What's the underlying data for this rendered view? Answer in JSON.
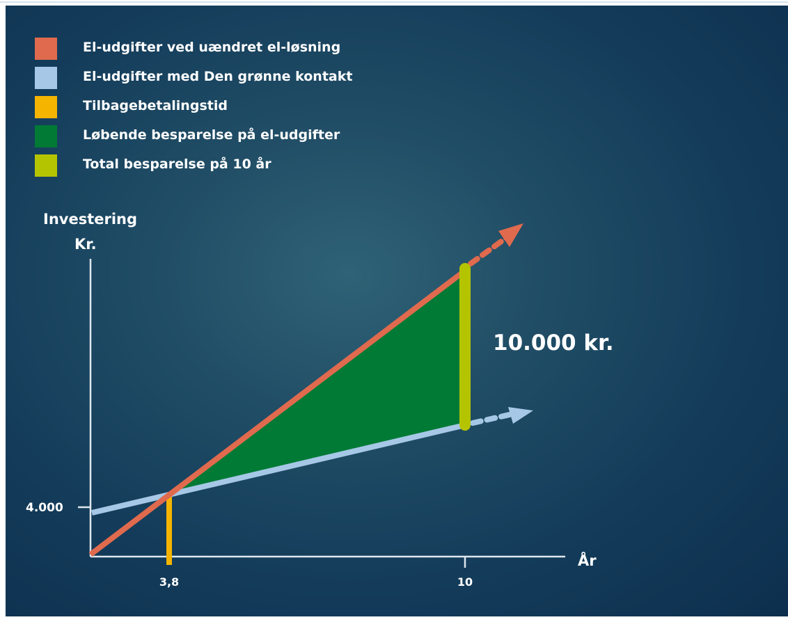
{
  "legend": [
    {
      "label": "El-udgifter ved uændret el-løsning",
      "color": "#e06a4e"
    },
    {
      "label": "El-udgifter med Den grønne kontakt",
      "color": "#a6c8e6"
    },
    {
      "label": "Tilbagebetalingstid",
      "color": "#f5b400"
    },
    {
      "label": "Løbende besparelse på el-udgifter",
      "color": "#007a35"
    },
    {
      "label": "Total besparelse på 10 år",
      "color": "#b5c400"
    }
  ],
  "axes": {
    "y_title": "Investering",
    "y_unit": "Kr.",
    "y_tick": "4.000",
    "x_title": "År",
    "x_tick_payback": "3,8",
    "x_tick_end": "10"
  },
  "annotation": {
    "total_savings": "10.000 kr."
  },
  "colors": {
    "background": "#143d5b",
    "axis": "#dfe7ee"
  }
}
